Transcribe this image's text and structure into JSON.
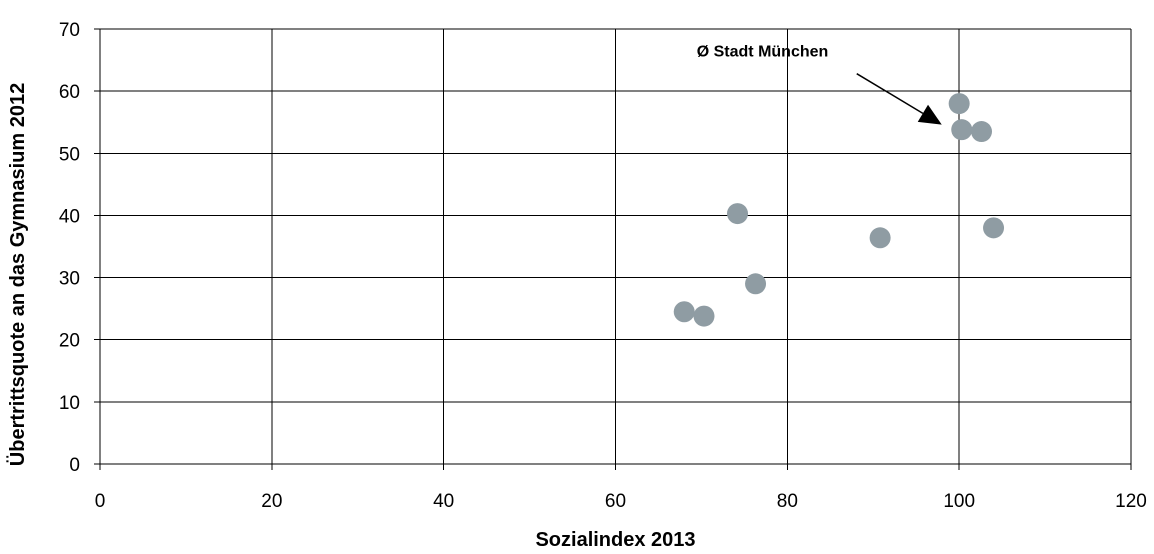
{
  "chart_data": {
    "type": "scatter",
    "xlabel": "Sozialindex 2013",
    "ylabel": "Übertrittsquote an das Gymnasium 2012",
    "xlim": [
      0,
      120
    ],
    "ylim": [
      0,
      70
    ],
    "x_ticks": [
      "0",
      "20",
      "40",
      "60",
      "80",
      "100",
      "120"
    ],
    "y_ticks": [
      "0",
      "10",
      "20",
      "30",
      "40",
      "50",
      "60",
      "70"
    ],
    "grid": true,
    "marker_color": "#8f9ca3",
    "points": [
      {
        "x": 68.0,
        "y": 24.5
      },
      {
        "x": 70.3,
        "y": 23.8
      },
      {
        "x": 74.2,
        "y": 40.3
      },
      {
        "x": 76.3,
        "y": 29.0
      },
      {
        "x": 90.8,
        "y": 36.4
      },
      {
        "x": 100.0,
        "y": 58.0
      },
      {
        "x": 100.3,
        "y": 53.8
      },
      {
        "x": 102.6,
        "y": 53.5
      },
      {
        "x": 104.0,
        "y": 38.0
      }
    ],
    "annotation": {
      "text": "Ø Stadt München",
      "target": {
        "x": 100.3,
        "y": 53.8
      }
    }
  }
}
